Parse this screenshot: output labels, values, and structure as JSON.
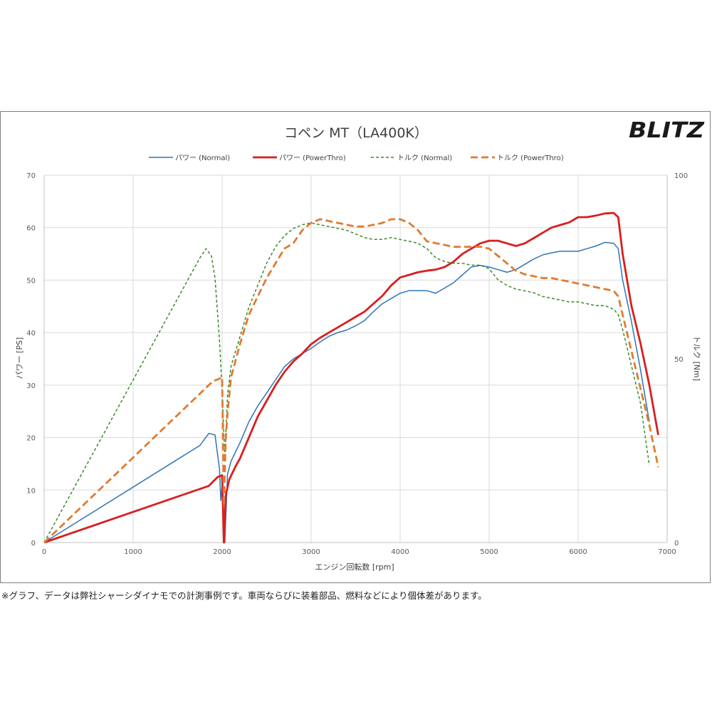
{
  "brand": {
    "logo_text": "BLITZ"
  },
  "footnote": "※グラフ、データは弊社シャーシダイナモでの計測事例です。車両ならびに装着部品、燃料などにより個体差があります。",
  "chart_data": {
    "type": "line",
    "title": "コペン MT（LA400K）",
    "xlabel": "エンジン回転数 [rpm]",
    "ylabel": "パワー [PS]",
    "y2label": "トルク [Nm]",
    "xlim": [
      0,
      7000
    ],
    "ylim": [
      0,
      70
    ],
    "y2lim": [
      0,
      100
    ],
    "xticks": [
      0,
      1000,
      2000,
      3000,
      4000,
      5000,
      6000,
      7000
    ],
    "yticks": [
      0,
      10,
      20,
      30,
      40,
      50,
      60,
      70
    ],
    "y2ticks": [
      0,
      50,
      100
    ],
    "grid": true,
    "legend_position": "top",
    "series": [
      {
        "name": "パワー (Normal)",
        "axis": "left",
        "color": "#2e75b6",
        "dash": "solid",
        "width": 1.5,
        "points": [
          [
            0,
            0
          ],
          [
            1750,
            18.5
          ],
          [
            1850,
            20.8
          ],
          [
            1920,
            20.5
          ],
          [
            1970,
            14
          ],
          [
            1985,
            8
          ],
          [
            2000,
            11
          ],
          [
            2030,
            0
          ],
          [
            2060,
            13
          ],
          [
            2100,
            15.5
          ],
          [
            2200,
            19
          ],
          [
            2300,
            23
          ],
          [
            2400,
            26
          ],
          [
            2500,
            28.5
          ],
          [
            2600,
            31
          ],
          [
            2700,
            33.5
          ],
          [
            2800,
            35
          ],
          [
            2900,
            36
          ],
          [
            3000,
            37
          ],
          [
            3100,
            38.2
          ],
          [
            3200,
            39.3
          ],
          [
            3300,
            40
          ],
          [
            3400,
            40.5
          ],
          [
            3500,
            41.3
          ],
          [
            3600,
            42.3
          ],
          [
            3700,
            44
          ],
          [
            3800,
            45.5
          ],
          [
            3900,
            46.5
          ],
          [
            4000,
            47.5
          ],
          [
            4100,
            48
          ],
          [
            4200,
            48
          ],
          [
            4300,
            48
          ],
          [
            4400,
            47.5
          ],
          [
            4500,
            48.5
          ],
          [
            4600,
            49.5
          ],
          [
            4700,
            51
          ],
          [
            4800,
            52.5
          ],
          [
            4900,
            52.8
          ],
          [
            5000,
            52.5
          ],
          [
            5100,
            52
          ],
          [
            5200,
            51.5
          ],
          [
            5300,
            52
          ],
          [
            5400,
            53
          ],
          [
            5500,
            54
          ],
          [
            5600,
            54.8
          ],
          [
            5700,
            55.2
          ],
          [
            5800,
            55.5
          ],
          [
            5900,
            55.5
          ],
          [
            6000,
            55.5
          ],
          [
            6100,
            56
          ],
          [
            6200,
            56.5
          ],
          [
            6300,
            57.2
          ],
          [
            6400,
            57
          ],
          [
            6450,
            56
          ],
          [
            6500,
            50
          ],
          [
            6600,
            42
          ],
          [
            6700,
            33
          ],
          [
            6800,
            23
          ]
        ]
      },
      {
        "name": "パワー (PowerThro)",
        "axis": "left",
        "color": "#d91e1e",
        "dash": "solid",
        "width": 2.8,
        "points": [
          [
            0,
            0
          ],
          [
            1850,
            10.8
          ],
          [
            1950,
            12.5
          ],
          [
            2000,
            12.8
          ],
          [
            2020,
            0
          ],
          [
            2040,
            9
          ],
          [
            2080,
            12
          ],
          [
            2150,
            14.5
          ],
          [
            2200,
            16
          ],
          [
            2300,
            20
          ],
          [
            2400,
            24
          ],
          [
            2500,
            27
          ],
          [
            2600,
            30
          ],
          [
            2700,
            32.5
          ],
          [
            2800,
            34.5
          ],
          [
            2900,
            36
          ],
          [
            3000,
            37.8
          ],
          [
            3100,
            39
          ],
          [
            3200,
            40
          ],
          [
            3300,
            41
          ],
          [
            3400,
            42
          ],
          [
            3500,
            43
          ],
          [
            3600,
            44
          ],
          [
            3700,
            45.5
          ],
          [
            3800,
            47
          ],
          [
            3900,
            49
          ],
          [
            4000,
            50.5
          ],
          [
            4100,
            51
          ],
          [
            4200,
            51.5
          ],
          [
            4300,
            51.8
          ],
          [
            4400,
            52
          ],
          [
            4500,
            52.5
          ],
          [
            4600,
            53.5
          ],
          [
            4700,
            55
          ],
          [
            4800,
            56
          ],
          [
            4900,
            57
          ],
          [
            5000,
            57.5
          ],
          [
            5100,
            57.5
          ],
          [
            5200,
            57
          ],
          [
            5300,
            56.5
          ],
          [
            5400,
            57
          ],
          [
            5500,
            58
          ],
          [
            5600,
            59
          ],
          [
            5700,
            60
          ],
          [
            5800,
            60.5
          ],
          [
            5900,
            61
          ],
          [
            6000,
            62
          ],
          [
            6100,
            62
          ],
          [
            6200,
            62.3
          ],
          [
            6300,
            62.7
          ],
          [
            6400,
            62.8
          ],
          [
            6450,
            62
          ],
          [
            6500,
            55
          ],
          [
            6600,
            45
          ],
          [
            6700,
            38
          ],
          [
            6800,
            30
          ],
          [
            6900,
            20.5
          ]
        ]
      },
      {
        "name": "トルク (Normal)",
        "axis": "right",
        "color": "#3a8a2a",
        "dash": "4,3",
        "width": 1.5,
        "points": [
          [
            0,
            0
          ],
          [
            1750,
            77.5
          ],
          [
            1820,
            80
          ],
          [
            1880,
            78
          ],
          [
            1920,
            72
          ],
          [
            1970,
            55
          ],
          [
            2000,
            41
          ],
          [
            2030,
            23
          ],
          [
            2060,
            40
          ],
          [
            2100,
            48
          ],
          [
            2200,
            56
          ],
          [
            2300,
            64
          ],
          [
            2400,
            70
          ],
          [
            2500,
            76
          ],
          [
            2600,
            80.5
          ],
          [
            2700,
            83.5
          ],
          [
            2800,
            85.5
          ],
          [
            2900,
            86.5
          ],
          [
            3000,
            87
          ],
          [
            3100,
            86.5
          ],
          [
            3200,
            86
          ],
          [
            3300,
            85.5
          ],
          [
            3400,
            85
          ],
          [
            3500,
            84
          ],
          [
            3600,
            83
          ],
          [
            3700,
            82.5
          ],
          [
            3800,
            82.5
          ],
          [
            3900,
            83
          ],
          [
            4000,
            82.5
          ],
          [
            4100,
            82
          ],
          [
            4200,
            81.5
          ],
          [
            4300,
            80
          ],
          [
            4400,
            77.5
          ],
          [
            4500,
            76.5
          ],
          [
            4600,
            76
          ],
          [
            4700,
            76
          ],
          [
            4800,
            75.5
          ],
          [
            4900,
            75.5
          ],
          [
            5000,
            74.5
          ],
          [
            5100,
            71.5
          ],
          [
            5200,
            70
          ],
          [
            5300,
            69
          ],
          [
            5400,
            68.5
          ],
          [
            5500,
            68
          ],
          [
            5600,
            67
          ],
          [
            5700,
            66.5
          ],
          [
            5800,
            66
          ],
          [
            5900,
            65.5
          ],
          [
            6000,
            65.5
          ],
          [
            6100,
            65
          ],
          [
            6200,
            64.5
          ],
          [
            6300,
            64.5
          ],
          [
            6400,
            63.5
          ],
          [
            6450,
            62
          ],
          [
            6500,
            58
          ],
          [
            6600,
            48
          ],
          [
            6700,
            38
          ],
          [
            6800,
            21
          ]
        ]
      },
      {
        "name": "トルク (PowerThro)",
        "axis": "right",
        "color": "#e07b30",
        "dash": "10,5",
        "width": 2.8,
        "points": [
          [
            0,
            0
          ],
          [
            1900,
            44
          ],
          [
            1960,
            44.5
          ],
          [
            2000,
            45
          ],
          [
            2020,
            10
          ],
          [
            2040,
            28
          ],
          [
            2060,
            35
          ],
          [
            2100,
            45
          ],
          [
            2200,
            54
          ],
          [
            2300,
            62
          ],
          [
            2400,
            67
          ],
          [
            2500,
            72
          ],
          [
            2600,
            76
          ],
          [
            2700,
            80
          ],
          [
            2800,
            81.5
          ],
          [
            2900,
            85
          ],
          [
            3000,
            87
          ],
          [
            3100,
            88
          ],
          [
            3200,
            87.5
          ],
          [
            3300,
            87
          ],
          [
            3400,
            86.5
          ],
          [
            3500,
            86
          ],
          [
            3600,
            86
          ],
          [
            3700,
            86.5
          ],
          [
            3800,
            87
          ],
          [
            3900,
            88
          ],
          [
            4000,
            88
          ],
          [
            4100,
            87
          ],
          [
            4200,
            85
          ],
          [
            4300,
            82
          ],
          [
            4400,
            81.5
          ],
          [
            4500,
            81
          ],
          [
            4600,
            80.5
          ],
          [
            4700,
            80.5
          ],
          [
            4800,
            80.5
          ],
          [
            4900,
            80.5
          ],
          [
            5000,
            80
          ],
          [
            5100,
            78
          ],
          [
            5200,
            76
          ],
          [
            5300,
            74
          ],
          [
            5400,
            73
          ],
          [
            5500,
            72.5
          ],
          [
            5600,
            72
          ],
          [
            5700,
            72
          ],
          [
            5800,
            71.5
          ],
          [
            5900,
            71
          ],
          [
            6000,
            70.5
          ],
          [
            6100,
            70
          ],
          [
            6200,
            69.5
          ],
          [
            6300,
            69
          ],
          [
            6400,
            68.5
          ],
          [
            6450,
            67
          ],
          [
            6500,
            62
          ],
          [
            6600,
            52
          ],
          [
            6700,
            42
          ],
          [
            6800,
            32
          ],
          [
            6900,
            20.5
          ]
        ]
      }
    ]
  }
}
